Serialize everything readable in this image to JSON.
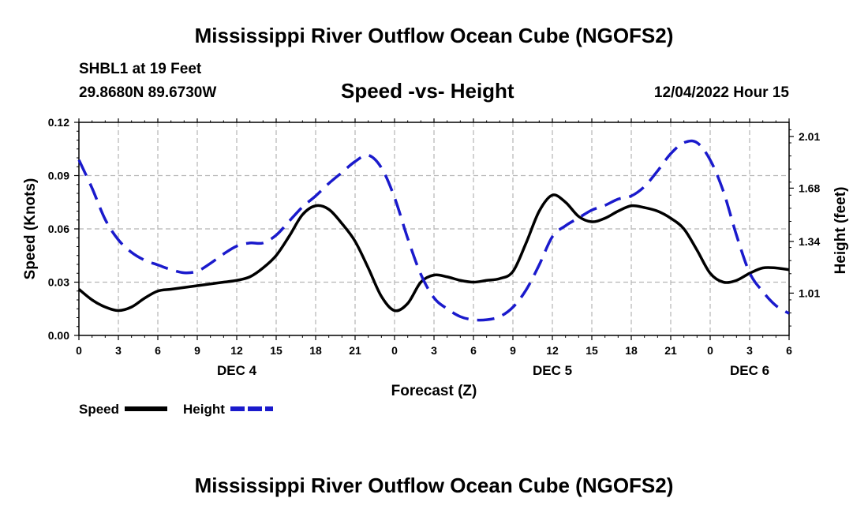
{
  "header": {
    "title": "Mississippi River Outflow Ocean Cube (NGOFS2)",
    "station": "SHBL1 at 19 Feet",
    "coords": "29.8680N  89.6730W",
    "subtitle": "Speed -vs- Height",
    "date": "12/04/2022 Hour 15"
  },
  "footer": {
    "title": "Mississippi River Outflow Ocean Cube (NGOFS2)"
  },
  "chart_data": {
    "type": "line",
    "title": "Speed -vs- Height",
    "xlabel": "Forecast (Z)",
    "ylabel": "Speed (Knots)",
    "y2label": "Height (feet)",
    "xlim": [
      0,
      54
    ],
    "ylim": [
      0,
      0.12
    ],
    "y2lim": [
      0.74,
      2.1
    ],
    "grid": true,
    "x_ticks": [
      0,
      3,
      6,
      9,
      12,
      15,
      18,
      21,
      24,
      27,
      30,
      33,
      36,
      39,
      42,
      45,
      48,
      51,
      54
    ],
    "x_tick_labels": [
      "0",
      "3",
      "6",
      "9",
      "12",
      "15",
      "18",
      "21",
      "0",
      "3",
      "6",
      "9",
      "12",
      "15",
      "18",
      "21",
      "0",
      "3",
      "6"
    ],
    "y_ticks": [
      0,
      0.03,
      0.06,
      0.09,
      0.12
    ],
    "y_tick_labels": [
      "0.00",
      "0.03",
      "0.06",
      "0.09",
      "0.12"
    ],
    "y2_ticks": [
      1.01,
      1.34,
      1.68,
      2.01
    ],
    "y2_tick_labels": [
      "1.01",
      "1.34",
      "1.68",
      "2.01"
    ],
    "day_labels": [
      {
        "x": 12,
        "label": "DEC 4"
      },
      {
        "x": 36,
        "label": "DEC 5"
      },
      {
        "x": 51,
        "label": "DEC 6"
      }
    ],
    "series": [
      {
        "name": "Speed",
        "axis": "left",
        "color": "#000000",
        "dash": "solid",
        "x": [
          0,
          1,
          2,
          3,
          4,
          5,
          6,
          7,
          8,
          9,
          10,
          11,
          12,
          13,
          14,
          15,
          16,
          17,
          18,
          19,
          20,
          21,
          22,
          23,
          24,
          25,
          26,
          27,
          28,
          29,
          30,
          31,
          32,
          33,
          34,
          35,
          36,
          37,
          38,
          39,
          40,
          41,
          42,
          43,
          44,
          45,
          46,
          47,
          48,
          49,
          50,
          51,
          52,
          53,
          54
        ],
        "values": [
          0.026,
          0.02,
          0.016,
          0.014,
          0.016,
          0.021,
          0.025,
          0.026,
          0.027,
          0.028,
          0.029,
          0.03,
          0.031,
          0.033,
          0.038,
          0.045,
          0.056,
          0.068,
          0.073,
          0.071,
          0.063,
          0.053,
          0.038,
          0.022,
          0.014,
          0.018,
          0.03,
          0.034,
          0.033,
          0.031,
          0.03,
          0.031,
          0.032,
          0.036,
          0.052,
          0.07,
          0.079,
          0.075,
          0.067,
          0.064,
          0.066,
          0.07,
          0.073,
          0.072,
          0.07,
          0.066,
          0.06,
          0.048,
          0.035,
          0.03,
          0.031,
          0.035,
          0.038,
          0.038,
          0.037
        ]
      },
      {
        "name": "Height",
        "axis": "right",
        "color": "#1a1acc",
        "dash": "dashed",
        "x": [
          0,
          1,
          2,
          3,
          4,
          5,
          6,
          7,
          8,
          9,
          10,
          11,
          12,
          13,
          14,
          15,
          16,
          17,
          18,
          19,
          20,
          21,
          22,
          23,
          24,
          25,
          26,
          27,
          28,
          29,
          30,
          31,
          32,
          33,
          34,
          35,
          36,
          37,
          38,
          39,
          40,
          41,
          42,
          43,
          44,
          45,
          46,
          47,
          48,
          49,
          50,
          51,
          52,
          53,
          54
        ],
        "values": [
          1.86,
          1.68,
          1.48,
          1.35,
          1.27,
          1.22,
          1.19,
          1.16,
          1.14,
          1.15,
          1.2,
          1.26,
          1.31,
          1.33,
          1.33,
          1.38,
          1.47,
          1.56,
          1.63,
          1.71,
          1.78,
          1.85,
          1.89,
          1.81,
          1.62,
          1.36,
          1.13,
          0.98,
          0.91,
          0.86,
          0.84,
          0.84,
          0.86,
          0.92,
          1.03,
          1.19,
          1.37,
          1.44,
          1.49,
          1.54,
          1.57,
          1.61,
          1.63,
          1.69,
          1.79,
          1.9,
          1.97,
          1.97,
          1.86,
          1.66,
          1.38,
          1.14,
          1.02,
          0.93,
          0.88
        ]
      }
    ],
    "legend": {
      "placement": "bottom-left",
      "items": [
        {
          "label": "Speed",
          "color": "#000000",
          "dash": "solid"
        },
        {
          "label": "Height",
          "color": "#1a1acc",
          "dash": "dashed"
        }
      ]
    }
  }
}
